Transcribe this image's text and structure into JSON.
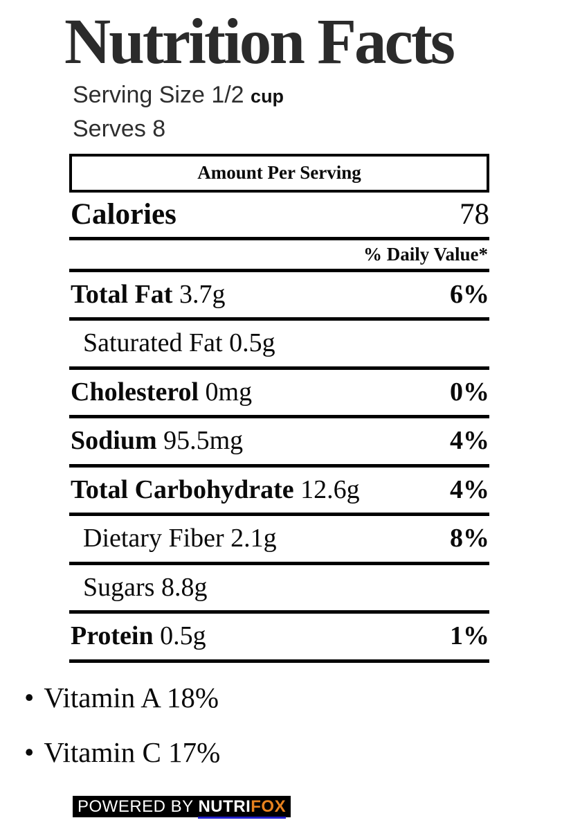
{
  "title": "Nutrition Facts",
  "serving": {
    "size_line": "Serving Size 1/2",
    "size_unit": "cup",
    "serves_line": "Serves 8"
  },
  "header": {
    "amount_per_serving": "Amount Per Serving",
    "calories_label": "Calories",
    "calories_value": "78",
    "daily_value_label": "% Daily Value*"
  },
  "rows": [
    {
      "name": "Total Fat",
      "amount": "3.7g",
      "dv": "6%"
    },
    {
      "name": "Saturated Fat",
      "amount": "0.5g",
      "dv": ""
    },
    {
      "name": "Cholesterol",
      "amount": "0mg",
      "dv": "0%"
    },
    {
      "name": "Sodium",
      "amount": "95.5mg",
      "dv": "4%"
    },
    {
      "name": "Total Carbohydrate",
      "amount": "12.6g",
      "dv": "4%"
    },
    {
      "name": "Dietary Fiber",
      "amount": "2.1g",
      "dv": "8%"
    },
    {
      "name": "Sugars",
      "amount": "8.8g",
      "dv": ""
    },
    {
      "name": "Protein",
      "amount": "0.5g",
      "dv": "1%"
    }
  ],
  "vitamins": [
    {
      "bullet": "•",
      "label": "Vitamin A 18%"
    },
    {
      "bullet": "•",
      "label": "Vitamin C 17%"
    }
  ],
  "footer": {
    "powered_by": "POWERED BY ",
    "brand_part1": "NUTRI",
    "brand_part2": "FOX",
    "colors": {
      "badge_background": "#000000",
      "badge_text": "#ffffff",
      "brand_fox": "#e8821e",
      "brand_underline": "#2220cc"
    }
  }
}
